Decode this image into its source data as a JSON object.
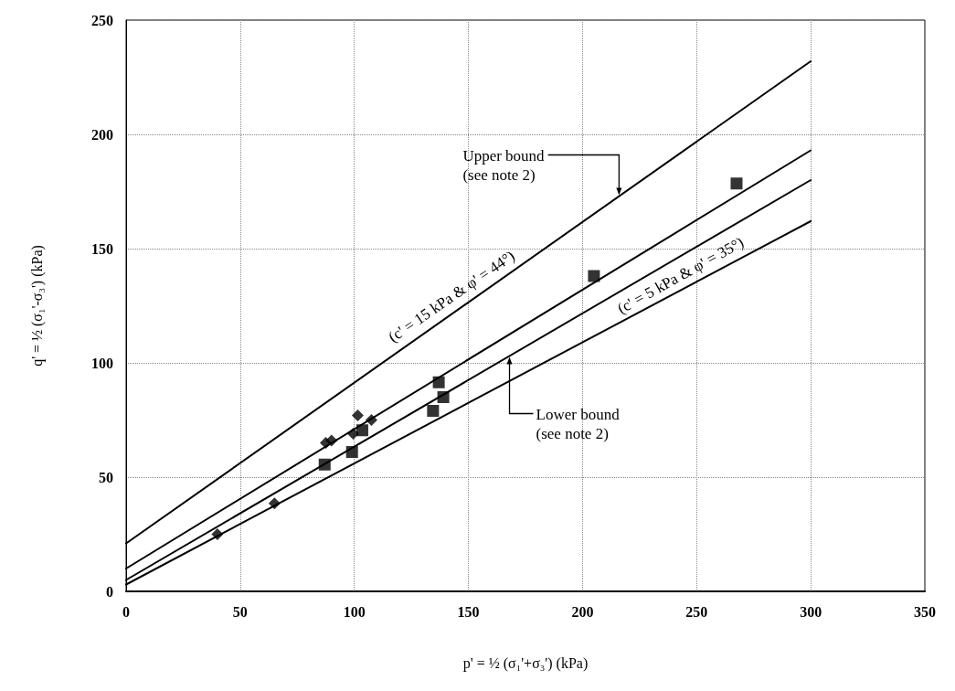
{
  "chart_data": {
    "type": "scatter",
    "xlabel": "p' = ½ (σ₁'+σ₃') (kPa)",
    "ylabel": "q' = ½ (σ₁'-σ₃') (kPa)",
    "xlim": [
      0,
      350
    ],
    "xticks": [
      0,
      50,
      100,
      150,
      200,
      250,
      300,
      350
    ],
    "ylim": [
      0,
      250
    ],
    "yticks": [
      0,
      50,
      100,
      150,
      200,
      250
    ],
    "grid": true,
    "series": [
      {
        "type": "line",
        "color": "#000000",
        "line_style": "solid",
        "marker": "none",
        "x": [
          0,
          300
        ],
        "values": [
          21,
          232
        ]
      },
      {
        "type": "line",
        "color": "#000000",
        "line_style": "solid",
        "marker": "none",
        "x": [
          0,
          300
        ],
        "values": [
          10,
          193
        ]
      },
      {
        "type": "line",
        "color": "#000000",
        "line_style": "solid",
        "marker": "none",
        "x": [
          0,
          300
        ],
        "values": [
          5,
          180
        ]
      },
      {
        "type": "line",
        "color": "#000000",
        "line_style": "solid",
        "marker": "none",
        "x": [
          0,
          300
        ],
        "values": [
          3,
          162
        ]
      },
      {
        "type": "scatter",
        "color": "#000000",
        "marker": "diamond",
        "x": [
          40,
          65,
          87.5,
          90,
          101.5,
          99.5,
          107.5
        ],
        "values": [
          25,
          38.5,
          65,
          66,
          77,
          69,
          75
        ]
      },
      {
        "type": "scatter",
        "color": "#000000",
        "marker": "square",
        "x": [
          103.5,
          87,
          99,
          137,
          139,
          134.5,
          205,
          267.5
        ],
        "values": [
          70.5,
          55.5,
          61,
          91.5,
          85,
          79,
          138,
          178.5
        ]
      }
    ],
    "annotations": [
      {
        "text": "(c' = 15 kPa & φ' = 44°)",
        "x": 145,
        "y": 124
      },
      {
        "text": "(c' = 5 kPa & φ' = 35°)",
        "x": 245,
        "y": 133
      },
      {
        "text": "Upper bound\n(see note 2)",
        "x": 216,
        "y": 173
      },
      {
        "text": "Lower bound\n(see note 2)",
        "x": 168,
        "y": 103
      }
    ]
  }
}
